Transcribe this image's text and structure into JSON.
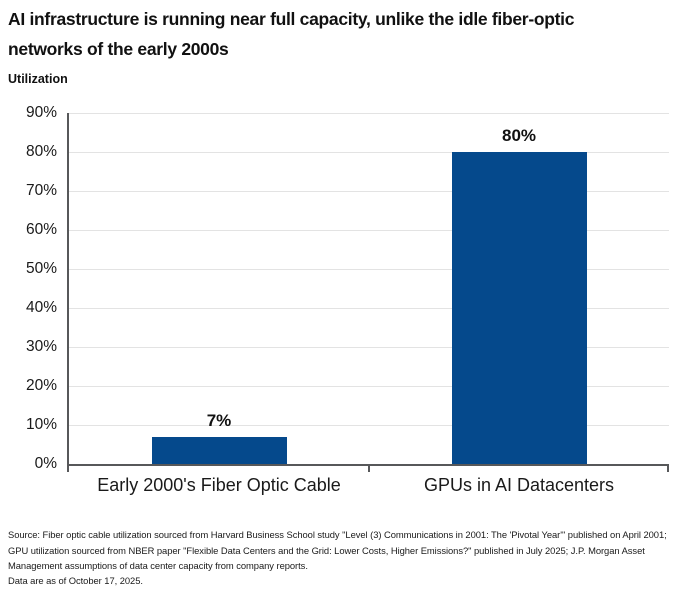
{
  "title": "AI infrastructure is running near full capacity, unlike the idle fiber-optic\nnetworks of the early 2000s",
  "chart_data": {
    "type": "bar",
    "title": "AI infrastructure is running near full capacity, unlike the idle fiber-optic networks of the early 2000s",
    "ylabel": "Utilization",
    "xlabel": "",
    "categories": [
      "Early 2000's Fiber Optic Cable",
      "GPUs in AI Datacenters"
    ],
    "values": [
      7,
      80
    ],
    "value_labels": [
      "7%",
      "80%"
    ],
    "ylim": [
      0,
      90
    ],
    "ytick_step": 10,
    "ytick_labels": [
      "0%",
      "10%",
      "20%",
      "30%",
      "40%",
      "50%",
      "60%",
      "70%",
      "80%",
      "90%"
    ],
    "grid": true,
    "legend": false
  },
  "colors": {
    "bar": "#05498C",
    "gridline": "#e3e3e3",
    "axis": "#57585a",
    "text": "#1a1a1a"
  },
  "source": {
    "text": "Source: Fiber optic cable utilization sourced from Harvard Business School study \"Level (3) Communications in 2001: The 'Pivotal Year'\" published on April 2001; GPU utilization sourced from NBER paper \"Flexible Data Centers and the Grid: Lower Costs, Higher Emissions?\" published in July 2025; J.P. Morgan Asset Management assumptions of data center capacity from company reports.",
    "as_of": "Data are as of October 17, 2025."
  }
}
